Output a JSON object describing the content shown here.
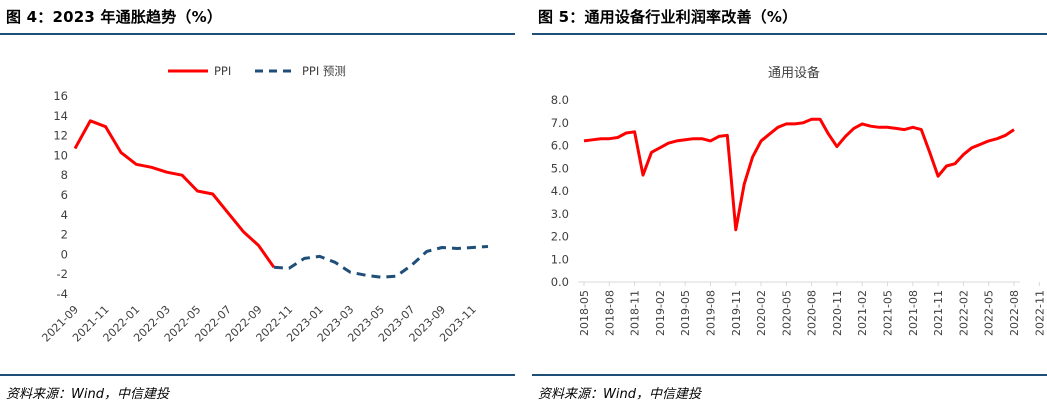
{
  "left_panel": {
    "figure_title": "图 4：2023 年通胀趋势（%）",
    "source": "资料来源：Wind，中信建投"
  },
  "right_panel": {
    "figure_title": "图 5：通用设备行业利润率改善（%）",
    "source": "资料来源：Wind，中信建投"
  },
  "chart_data": [
    {
      "type": "line",
      "title": "",
      "xlabel": "",
      "ylabel": "",
      "ylim": [
        -4,
        16
      ],
      "yticks": [
        16,
        14,
        12,
        10,
        8,
        6,
        4,
        2,
        0,
        -2,
        -4
      ],
      "x_ticks": [
        "2021-09",
        "2021-11",
        "2022-01",
        "2022-03",
        "2022-05",
        "2022-07",
        "2022-09",
        "2022-11",
        "2023-01",
        "2023-03",
        "2023-05",
        "2023-07",
        "2023-09",
        "2023-11"
      ],
      "legend": [
        "PPI",
        "PPI 预测"
      ],
      "legend_position": "top-center",
      "series": [
        {
          "name": "PPI",
          "style": "solid",
          "color": "#ff0000",
          "x": [
            "2021-09",
            "2021-10",
            "2021-11",
            "2021-12",
            "2022-01",
            "2022-02",
            "2022-03",
            "2022-04",
            "2022-05",
            "2022-06",
            "2022-07",
            "2022-08",
            "2022-09",
            "2022-10"
          ],
          "values": [
            10.7,
            13.5,
            12.9,
            10.3,
            9.1,
            8.8,
            8.3,
            8.0,
            6.4,
            6.1,
            4.2,
            2.3,
            0.9,
            -1.3
          ]
        },
        {
          "name": "PPI 预测",
          "style": "dashed",
          "color": "#1f4e79",
          "x": [
            "2022-10",
            "2022-11",
            "2022-12",
            "2023-01",
            "2023-02",
            "2023-03",
            "2023-04",
            "2023-05",
            "2023-06",
            "2023-07",
            "2023-08",
            "2023-09",
            "2023-10",
            "2023-11",
            "2023-12"
          ],
          "values": [
            -1.3,
            -1.4,
            -0.4,
            -0.2,
            -0.8,
            -1.8,
            -2.1,
            -2.3,
            -2.2,
            -1.1,
            0.3,
            0.7,
            0.6,
            0.7,
            0.8
          ]
        }
      ]
    },
    {
      "type": "line",
      "title": "通用设备",
      "xlabel": "",
      "ylabel": "",
      "ylim": [
        0,
        8
      ],
      "yticks": [
        "8.0",
        "7.0",
        "6.0",
        "5.0",
        "4.0",
        "3.0",
        "2.0",
        "1.0",
        "0.0"
      ],
      "x_ticks": [
        "2018-05",
        "2018-08",
        "2018-11",
        "2019-02",
        "2019-05",
        "2019-08",
        "2019-11",
        "2020-02",
        "2020-05",
        "2020-08",
        "2020-11",
        "2021-02",
        "2021-05",
        "2021-08",
        "2021-11",
        "2022-02",
        "2022-05",
        "2022-08",
        "2022-11"
      ],
      "series": [
        {
          "name": "通用设备",
          "style": "solid",
          "color": "#ff0000",
          "values": [
            6.2,
            6.25,
            6.3,
            6.3,
            6.35,
            6.55,
            6.6,
            4.7,
            5.7,
            5.9,
            6.1,
            6.2,
            6.25,
            6.3,
            6.3,
            6.2,
            6.4,
            6.45,
            2.3,
            4.3,
            5.5,
            6.2,
            6.5,
            6.8,
            6.95,
            6.95,
            7.0,
            7.15,
            7.15,
            6.5,
            5.95,
            6.4,
            6.75,
            6.95,
            6.85,
            6.8,
            6.8,
            6.75,
            6.7,
            6.8,
            6.7,
            5.7,
            4.65,
            5.1,
            5.2,
            5.6,
            5.9,
            6.05,
            6.2,
            6.3,
            6.45,
            6.7
          ]
        }
      ]
    }
  ]
}
